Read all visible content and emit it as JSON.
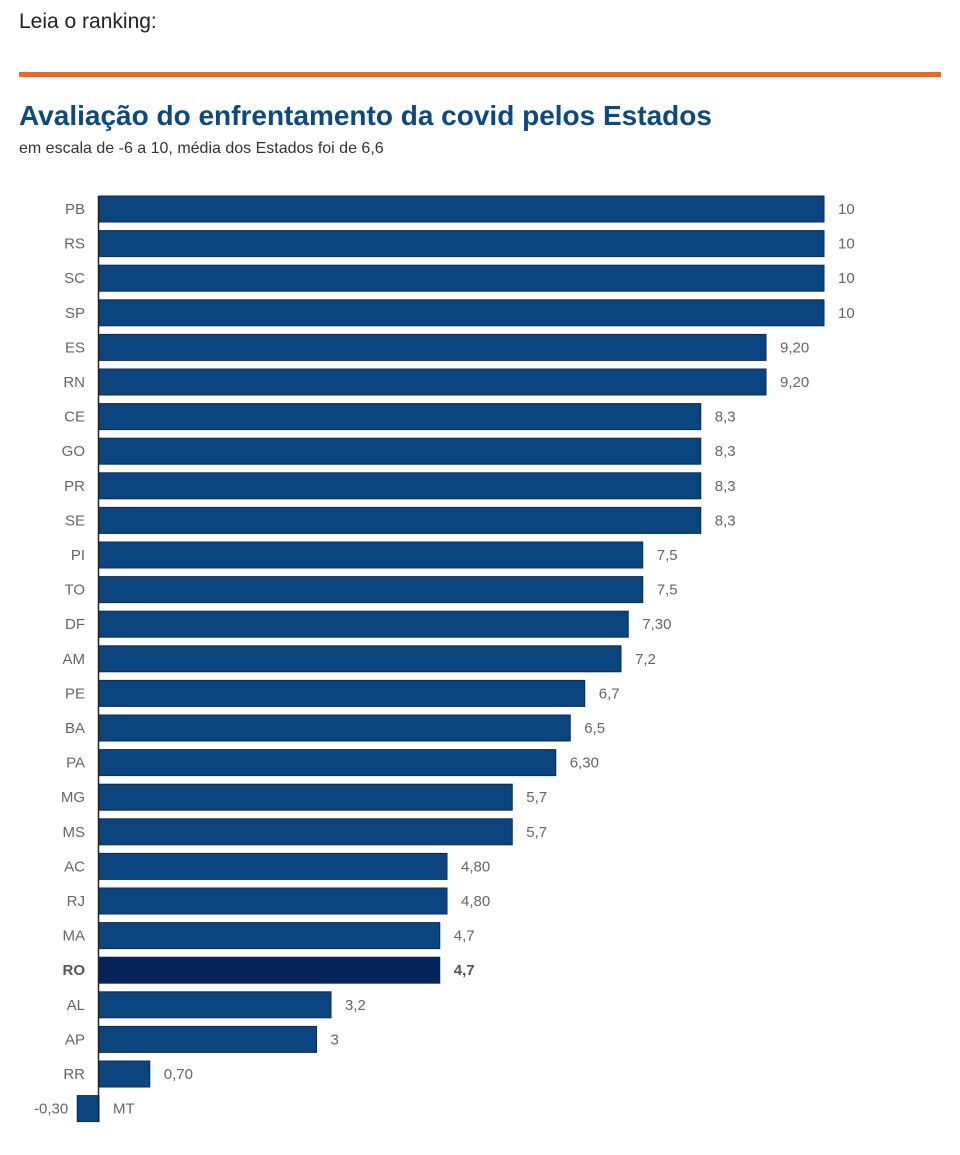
{
  "intro": "Leia o ranking:",
  "colors": {
    "rule": "#f26522",
    "bar": "#0b4580",
    "highlight": "#03235a",
    "title": "#0b4a80"
  },
  "chart_data": {
    "type": "bar",
    "orientation": "horizontal",
    "title": "Avaliação do enfrentamento da covid pelos Estados",
    "subtitle": "em escala de -6 a 10, média dos Estados foi de 6,6",
    "xlim": [
      -0.3,
      10
    ],
    "grid": false,
    "highlight": "RO",
    "categories": [
      "PB",
      "RS",
      "SC",
      "SP",
      "ES",
      "RN",
      "CE",
      "GO",
      "PR",
      "SE",
      "PI",
      "TO",
      "DF",
      "AM",
      "PE",
      "BA",
      "PA",
      "MG",
      "MS",
      "AC",
      "RJ",
      "MA",
      "RO",
      "AL",
      "AP",
      "RR",
      "MT"
    ],
    "values": [
      10,
      10,
      10,
      10,
      9.2,
      9.2,
      8.3,
      8.3,
      8.3,
      8.3,
      7.5,
      7.5,
      7.3,
      7.2,
      6.7,
      6.5,
      6.3,
      5.7,
      5.7,
      4.8,
      4.8,
      4.7,
      4.7,
      3.2,
      3,
      0.7,
      -0.3
    ],
    "labels": [
      "10",
      "10",
      "10",
      "10",
      "9,20",
      "9,20",
      "8,3",
      "8,3",
      "8,3",
      "8,3",
      "7,5",
      "7,5",
      "7,30",
      "7,2",
      "6,7",
      "6,5",
      "6,30",
      "5,7",
      "5,7",
      "4,80",
      "4,80",
      "4,7",
      "4,7",
      "3,2",
      "3",
      "0,70",
      "-0,30"
    ]
  }
}
